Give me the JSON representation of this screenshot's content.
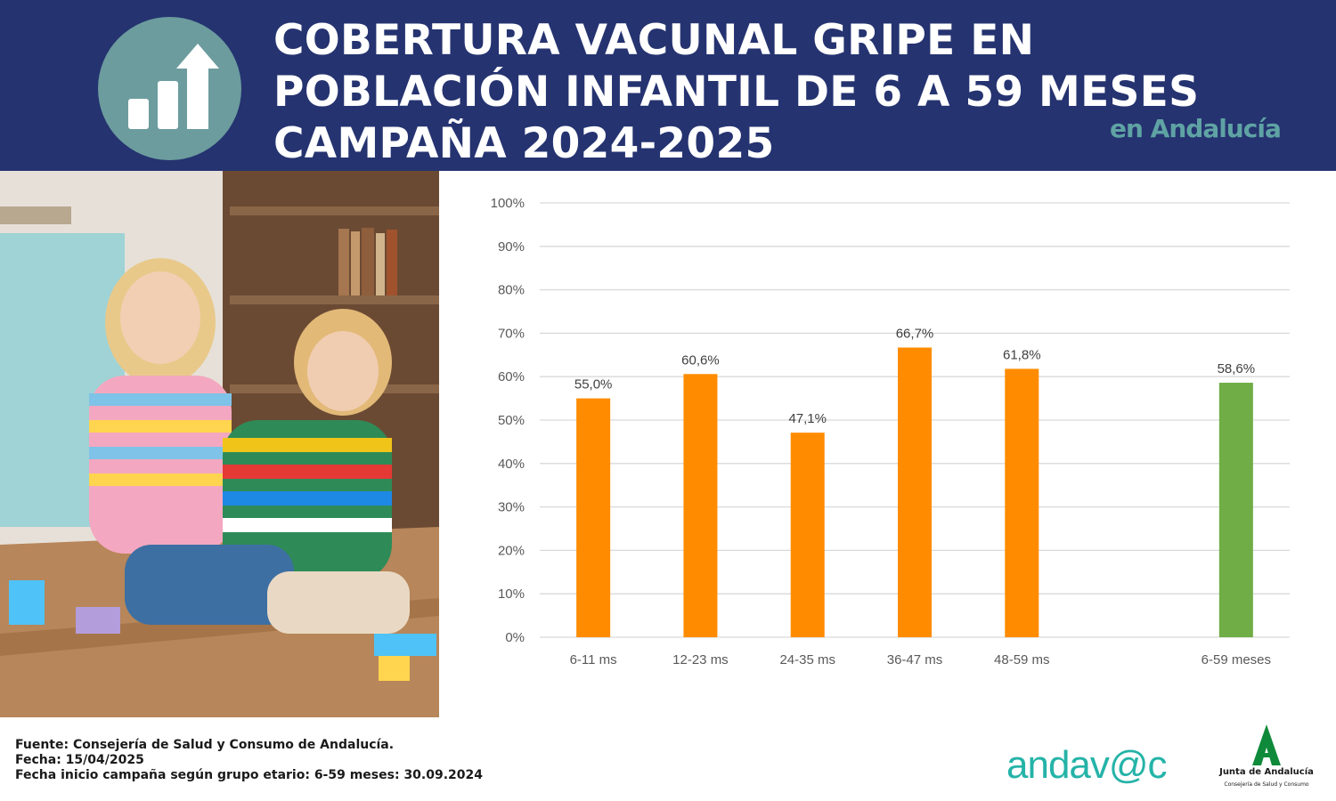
{
  "header": {
    "title_lines": [
      "COBERTURA VACUNAL GRIPE EN",
      "POBLACIÓN INFANTIL DE 6 A 59 MESES",
      "CAMPAÑA 2024-2025"
    ],
    "region": "en Andalucía",
    "icon": "bar-chart-arrow-icon"
  },
  "photo": {
    "description_icon": "children-playing-photo"
  },
  "chart_data": {
    "type": "bar",
    "categories": [
      "6-11 ms",
      "12-23 ms",
      "24-35 ms",
      "36-47 ms",
      "48-59 ms",
      "6-59 meses"
    ],
    "values": [
      55.0,
      60.6,
      47.1,
      66.7,
      61.8,
      58.6
    ],
    "data_labels": [
      "55,0%",
      "60,6%",
      "47,1%",
      "66,7%",
      "61,8%",
      "58,6%"
    ],
    "slots": [
      0,
      1,
      2,
      3,
      4,
      6
    ],
    "bar_colors": [
      "#ff8c00",
      "#ff8c00",
      "#ff8c00",
      "#ff8c00",
      "#ff8c00",
      "#70ad47"
    ],
    "ylim": [
      0,
      100
    ],
    "yticks": [
      "0%",
      "10%",
      "20%",
      "30%",
      "40%",
      "50%",
      "60%",
      "70%",
      "80%",
      "90%",
      "100%"
    ],
    "grid": true
  },
  "footer": {
    "source": "Fuente: Consejería de Salud y Consumo de Andalucía.",
    "date": "Fecha: 15/04/2025",
    "campaign_start": "Fecha inicio campaña según grupo etario: 6-59 meses: 30.09.2024",
    "andavac_logo": "andav@c",
    "junta_name": "Junta de Andalucía",
    "junta_sub": "Consejería de Salud y Consumo"
  },
  "colors": {
    "header_bg": "#253370",
    "accent_teal": "#6c9c9e",
    "bar_orange": "#ff8c00",
    "bar_green": "#70ad47"
  }
}
